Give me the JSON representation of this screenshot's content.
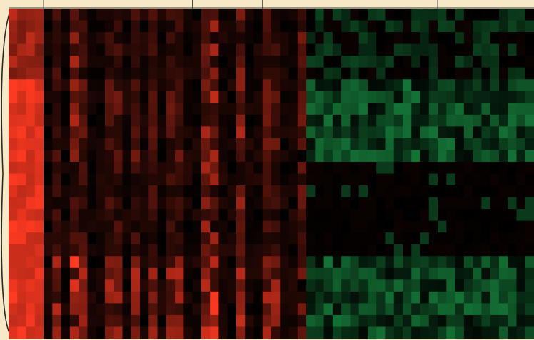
{
  "chart_data": {
    "type": "heatmap",
    "title": "",
    "xlabel": "",
    "ylabel": "",
    "colormap": {
      "negative": "#22c05a",
      "zero": "#000000",
      "positive": "#ff3a22"
    },
    "value_range": [
      -1,
      1
    ],
    "background": "#f7e9c8",
    "n_rows": 28,
    "n_cols": 60,
    "column_groups": [
      {
        "start": 0,
        "end": 3
      },
      {
        "start": 4,
        "end": 20
      },
      {
        "start": 21,
        "end": 28
      },
      {
        "start": 29,
        "end": 48
      },
      {
        "start": 49,
        "end": 59
      }
    ],
    "row_blocks": [
      {
        "start": 0,
        "end": 5,
        "profile": "upper"
      },
      {
        "start": 6,
        "end": 12,
        "profile": "green_right"
      },
      {
        "start": 13,
        "end": 20,
        "profile": "dark_middle"
      },
      {
        "start": 21,
        "end": 27,
        "profile": "red_left_green_right"
      }
    ],
    "seed": 7
  }
}
